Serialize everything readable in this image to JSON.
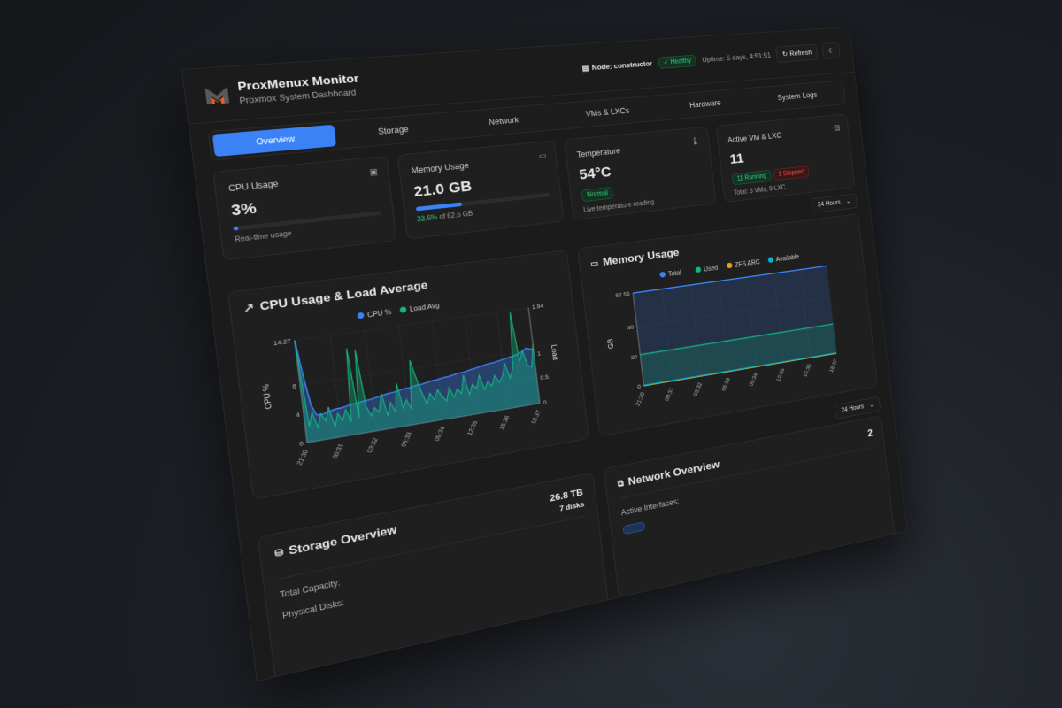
{
  "header": {
    "title": "ProxMenux Monitor",
    "subtitle": "Proxmox System Dashboard",
    "node_label": "Node: constructor",
    "health": "Healthy",
    "uptime": "Uptime: 5 days, 4:51:51",
    "refresh": "Refresh",
    "logo_colors": {
      "gray": "#5a5a5a",
      "orange": "#f25c1f"
    }
  },
  "tabs": [
    {
      "label": "Overview",
      "active": true
    },
    {
      "label": "Storage"
    },
    {
      "label": "Network"
    },
    {
      "label": "VMs & LXCs"
    },
    {
      "label": "Hardware"
    },
    {
      "label": "System Logs"
    }
  ],
  "stats": {
    "cpu": {
      "label": "CPU Usage",
      "value": "3%",
      "percent": 3,
      "note": "Real-time usage"
    },
    "memory": {
      "label": "Memory Usage",
      "value": "21.0 GB",
      "percent": 33.6,
      "pct_text": "33.6%",
      "of_text": " of 62.6 GB"
    },
    "temperature": {
      "label": "Temperature",
      "value": "54°C",
      "status": "Normal",
      "note": "Live temperature reading"
    },
    "vms": {
      "label": "Active VM & LXC",
      "value": "11",
      "running": "11 Running",
      "stopped": "1 Stopped",
      "note": "Total: 3 VMs, 9 LXC"
    }
  },
  "time_range": "24 Hours",
  "colors": {
    "accent": "#3b82f6",
    "green": "#10b981",
    "orange": "#f59e0b",
    "cyan": "#06b6d4"
  },
  "chart_data": [
    {
      "type": "line",
      "title": "CPU Usage & Load Average",
      "ylabel": "CPU %",
      "y2label": "Load",
      "ylim": [
        0,
        14.27
      ],
      "y2lim": [
        0,
        1.94
      ],
      "yticks": [
        "0",
        "4",
        "8",
        "14.27"
      ],
      "y2ticks": [
        "0",
        "0.5",
        "1",
        "1.94"
      ],
      "xticks": [
        "21:30",
        "00:31",
        "03:32",
        "06:33",
        "09:34",
        "12:35",
        "15:36",
        "18:37"
      ],
      "grid": true,
      "legend": "top",
      "series": [
        {
          "name": "CPU %",
          "axis": "left",
          "color": "#3b82f6",
          "values": [
            14.3,
            9,
            5,
            3.6,
            3.5,
            3.6,
            3.8,
            3.9,
            4,
            4,
            4.1,
            4.2,
            4.3,
            4.3,
            4.4,
            4.5,
            4.5,
            4.6,
            4.7,
            4.8,
            4.9,
            5,
            5,
            5.1,
            5.2,
            5.3,
            5.3,
            5.4,
            5.5,
            5.5,
            5.6,
            5.7,
            5.8,
            5.8,
            5.9,
            6,
            6,
            6.1,
            6.2,
            6.3,
            6.3,
            6.4,
            6.5,
            6.6,
            6.7,
            6.8,
            6.9,
            7,
            7,
            7.1,
            7.2,
            7.3,
            7.4,
            7.5,
            7.6,
            7.8,
            8,
            8.4,
            8.2,
            8.1
          ]
        },
        {
          "name": "Load Avg",
          "axis": "right",
          "color": "#10b981",
          "values": [
            1.9,
            0.3,
            0.55,
            0.25,
            0.5,
            0.35,
            0.6,
            0.2,
            0.45,
            0.3,
            0.5,
            0.25,
            1.65,
            0.3,
            1.6,
            0.5,
            0.3,
            0.45,
            0.35,
            0.7,
            0.25,
            0.5,
            0.3,
            0.85,
            0.35,
            0.5,
            0.3,
            1.25,
            0.9,
            0.6,
            0.35,
            0.55,
            0.4,
            0.6,
            0.45,
            0.35,
            0.6,
            0.4,
            0.55,
            0.45,
            0.8,
            0.4,
            0.6,
            0.5,
            0.75,
            0.45,
            0.6,
            0.5,
            0.7,
            0.55,
            0.65,
            0.9,
            0.6,
            0.8,
            1.9,
            0.9,
            1.1,
            0.8,
            0.75,
            1.2
          ]
        }
      ]
    },
    {
      "type": "area",
      "title": "Memory Usage",
      "ylabel": "GB",
      "ylim": [
        0,
        62.56
      ],
      "yticks": [
        "0",
        "20",
        "40",
        "62.56"
      ],
      "xticks": [
        "21:30",
        "00:31",
        "03:32",
        "06:33",
        "09:34",
        "12:35",
        "15:36",
        "18:37"
      ],
      "grid": true,
      "legend": "top",
      "series": [
        {
          "name": "Total",
          "color": "#3b82f6",
          "values": [
            62.56,
            62.56,
            62.56,
            62.56,
            62.56,
            62.56,
            62.56,
            62.56
          ]
        },
        {
          "name": "Used",
          "color": "#10b981",
          "values": [
            21,
            21,
            21,
            21,
            21,
            21,
            21,
            21
          ]
        },
        {
          "name": "ZFS ARC",
          "color": "#f59e0b",
          "values": [
            0,
            0,
            0,
            0,
            0,
            0,
            0,
            0
          ]
        },
        {
          "name": "Available",
          "color": "#06b6d4",
          "values": [
            0.3,
            0.3,
            0.3,
            0.3,
            0.3,
            0.3,
            0.3,
            0.3
          ]
        }
      ]
    }
  ],
  "storage": {
    "title": "Storage Overview",
    "capacity": "26.8 TB",
    "disks": "7 disks",
    "capacity_label": "Total Capacity:",
    "disks_label": "Physical Disks:"
  },
  "network": {
    "title": "Network Overview",
    "count": "2",
    "interfaces_label": "Active Interfaces:"
  }
}
